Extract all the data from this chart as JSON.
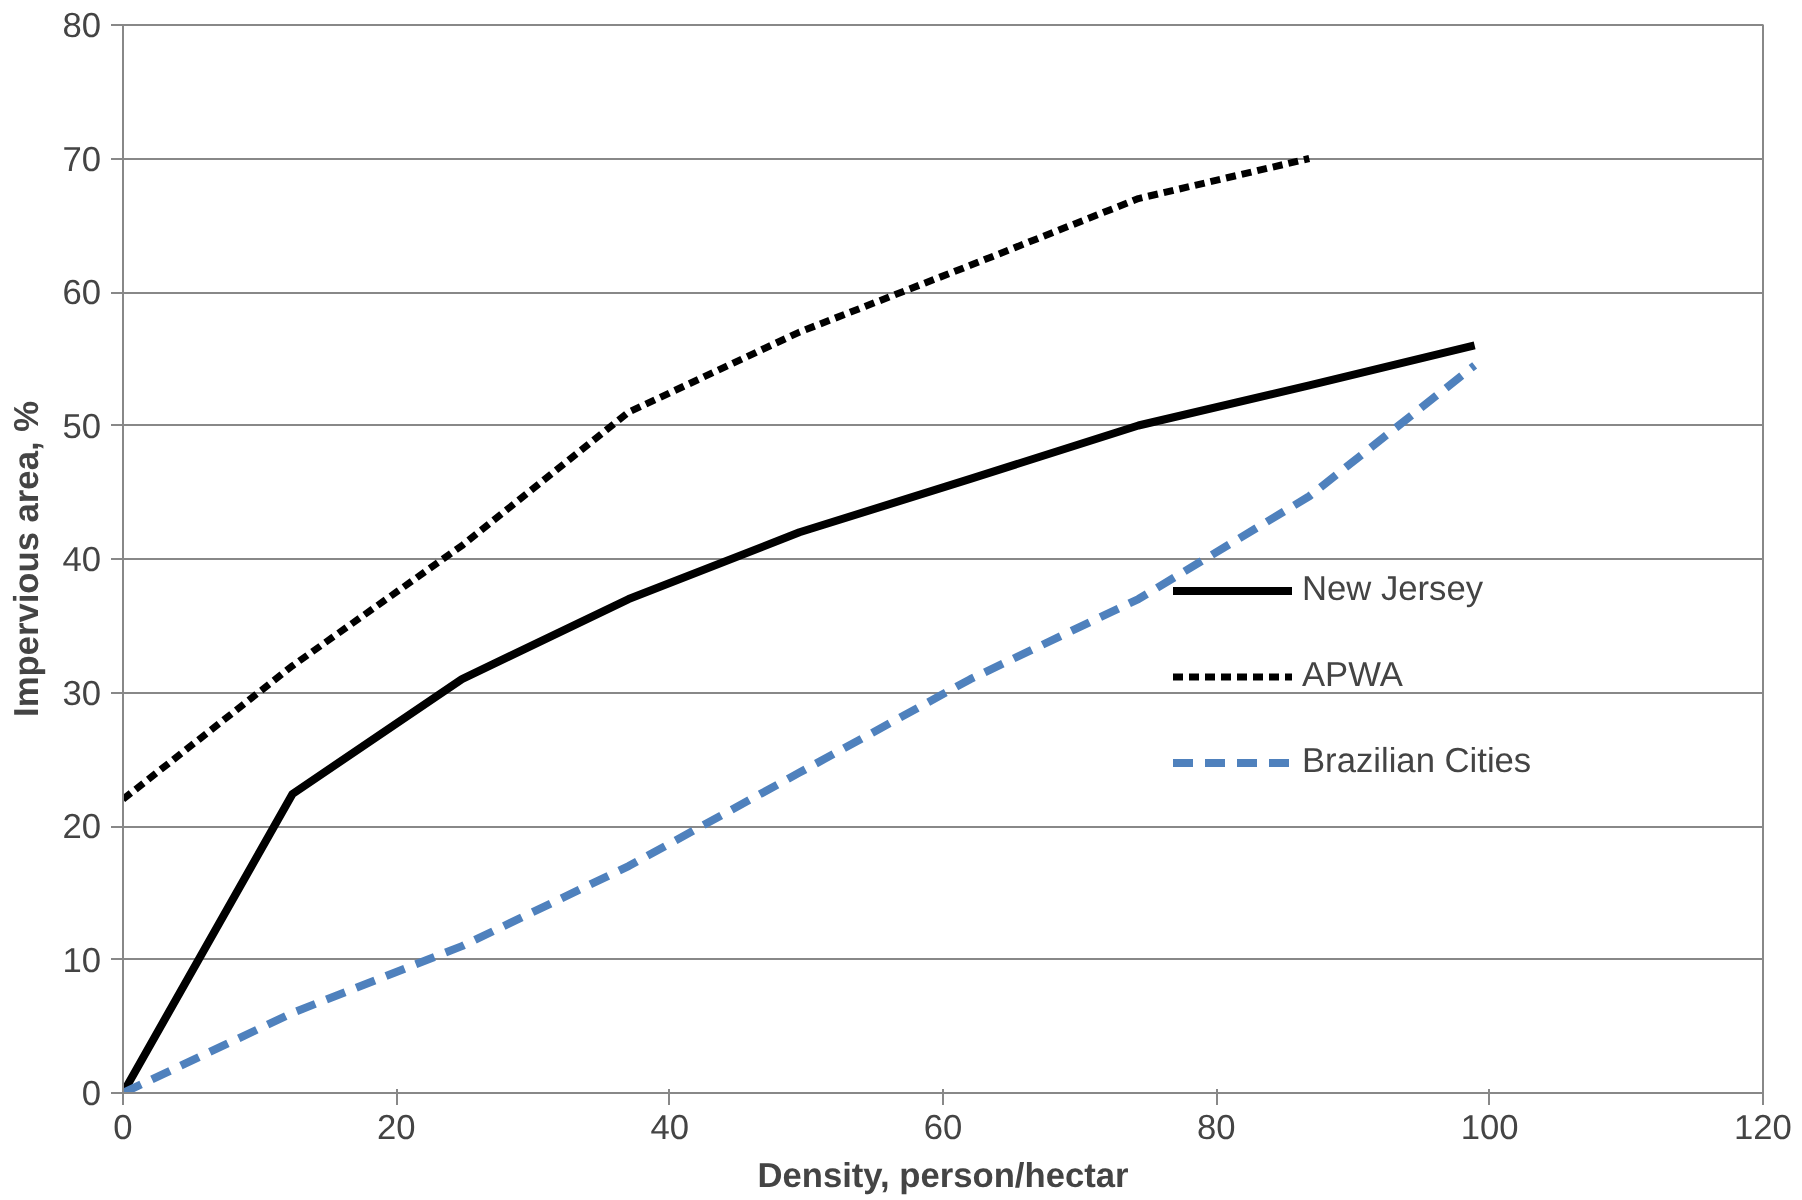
{
  "chart_data": {
    "type": "line",
    "xlabel": "Density, person/hectar",
    "ylabel": "Impervious area, %",
    "xlim": [
      0,
      120
    ],
    "xticks": [
      0,
      20,
      40,
      60,
      80,
      100,
      120
    ],
    "ylim": [
      0,
      80
    ],
    "yticks": [
      0,
      10,
      20,
      30,
      40,
      50,
      60,
      70,
      80
    ],
    "grid": "y",
    "legend": "right",
    "marker": "none",
    "series": [
      {
        "name": "New Jersey",
        "color": "#000000",
        "line_style": "solid",
        "x": [
          0,
          12.4,
          24.8,
          37,
          49.5,
          62,
          74.3,
          86.8,
          98.9
        ],
        "values": [
          0,
          22.4,
          31,
          37,
          42,
          46,
          50,
          53,
          56
        ]
      },
      {
        "name": "APWA",
        "color": "#000000",
        "line_style": "dotted",
        "x": [
          0,
          12.4,
          24.8,
          37,
          49.5,
          62,
          74.3,
          86.8
        ],
        "values": [
          22,
          32,
          41,
          51,
          57,
          62,
          67,
          70
        ]
      },
      {
        "name": "Brazilian Cities",
        "color": "#4f81bd",
        "line_style": "dashed",
        "x": [
          0,
          12.4,
          24.8,
          37,
          49.5,
          62,
          74.3,
          86.8,
          98.9
        ],
        "values": [
          0,
          6,
          11,
          17,
          24,
          31,
          37,
          44.7,
          54.5
        ]
      }
    ]
  }
}
